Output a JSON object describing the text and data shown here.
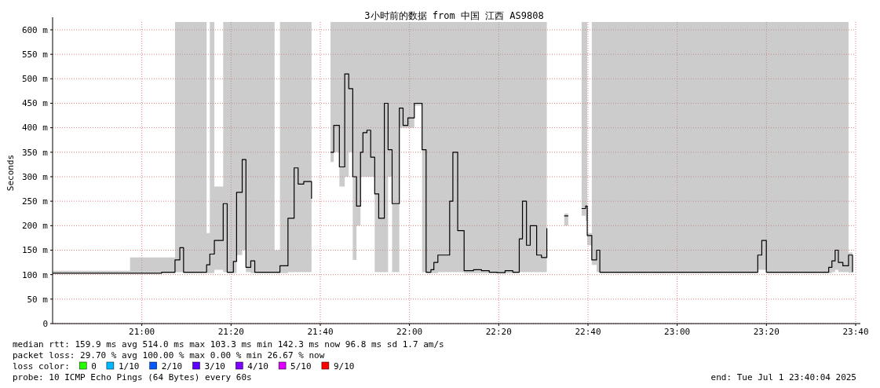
{
  "chart_data": {
    "type": "step",
    "title": "3小时前的数据 from 中国 江西 AS9808",
    "ylabel": "Seconds",
    "xlim": [
      20.6667,
      23.6667
    ],
    "xticks": [
      {
        "value": 21,
        "label": "21:00"
      },
      {
        "value": 21.3333,
        "label": "21:20"
      },
      {
        "value": 21.6667,
        "label": "21:40"
      },
      {
        "value": 22,
        "label": "22:00"
      },
      {
        "value": 22.3333,
        "label": "22:20"
      },
      {
        "value": 22.6667,
        "label": "22:40"
      },
      {
        "value": 23,
        "label": "23:00"
      },
      {
        "value": 23.3333,
        "label": "23:20"
      },
      {
        "value": 23.6667,
        "label": "23:40"
      }
    ],
    "ylim": [
      0,
      616
    ],
    "yticks": [
      0,
      {
        "value": 50,
        "label": "50 m"
      },
      {
        "value": 100,
        "label": "100 m"
      },
      {
        "value": 150,
        "label": "150 m"
      },
      {
        "value": 200,
        "label": "200 m"
      },
      {
        "value": 250,
        "label": "250 m"
      },
      {
        "value": 300,
        "label": "300 m"
      },
      {
        "value": 350,
        "label": "350 m"
      },
      {
        "value": 400,
        "label": "400 m"
      },
      {
        "value": 450,
        "label": "450 m"
      },
      {
        "value": 500,
        "label": "500 m"
      },
      {
        "value": 550,
        "label": "550 m"
      },
      {
        "value": 600,
        "label": "600 m"
      }
    ],
    "grid": true,
    "marker": "none",
    "line_style": "solid",
    "x": [
      20.667,
      20.956,
      21.074,
      21.124,
      21.142,
      21.156,
      21.242,
      21.254,
      21.271,
      21.304,
      21.319,
      21.342,
      21.354,
      21.375,
      21.389,
      21.407,
      21.422,
      21.496,
      21.516,
      21.546,
      21.569,
      21.584,
      21.605,
      21.634,
      21.664,
      21.705,
      21.717,
      21.738,
      21.758,
      21.773,
      21.788,
      21.802,
      21.817,
      21.826,
      21.841,
      21.855,
      21.87,
      21.885,
      21.906,
      21.92,
      21.935,
      21.962,
      21.976,
      21.994,
      22.018,
      22.047,
      22.062,
      22.08,
      22.091,
      22.106,
      22.15,
      22.162,
      22.18,
      22.204,
      22.239,
      22.269,
      22.298,
      22.327,
      22.357,
      22.386,
      22.41,
      22.422,
      22.437,
      22.451,
      22.475,
      22.493,
      22.513,
      22.534,
      22.578,
      22.593,
      22.6,
      22.643,
      22.658,
      22.664,
      22.681,
      22.699,
      22.711,
      23.006,
      23.301,
      23.316,
      23.333,
      23.552,
      23.566,
      23.578,
      23.59,
      23.602,
      23.619,
      23.64,
      23.655
    ],
    "series": [
      {
        "color": "#000000",
        "values": [
          103,
          103,
          105,
          130,
          155,
          105,
          120,
          142,
          170,
          245,
          105,
          127,
          268,
          335,
          115,
          128,
          105,
          105,
          118,
          215,
          318,
          285,
          290,
          255,
          null,
          350,
          405,
          320,
          510,
          480,
          300,
          240,
          350,
          390,
          395,
          340,
          265,
          215,
          450,
          355,
          245,
          440,
          405,
          420,
          450,
          355,
          105,
          110,
          125,
          140,
          250,
          350,
          190,
          108,
          110,
          108,
          105,
          104,
          108,
          105,
          173,
          250,
          160,
          200,
          140,
          135,
          195,
          null,
          220,
          220,
          null,
          235,
          240,
          180,
          130,
          150,
          105,
          105,
          140,
          170,
          105,
          105,
          115,
          128,
          150,
          125,
          118,
          140,
          105
        ],
        "lower": [
          103,
          103,
          103,
          105,
          105,
          103,
          103,
          103,
          110,
          105,
          103,
          103,
          140,
          150,
          105,
          103,
          103,
          103,
          103,
          105,
          105,
          105,
          105,
          250,
          null,
          330,
          350,
          280,
          300,
          350,
          130,
          200,
          300,
          300,
          300,
          300,
          105,
          105,
          105,
          300,
          105,
          400,
          400,
          400,
          445,
          105,
          103,
          103,
          103,
          105,
          105,
          105,
          105,
          103,
          103,
          103,
          103,
          103,
          103,
          103,
          105,
          105,
          105,
          105,
          105,
          105,
          185,
          null,
          200,
          200,
          null,
          220,
          210,
          160,
          120,
          105,
          103,
          103,
          110,
          110,
          103,
          103,
          103,
          105,
          110,
          105,
          105,
          104,
          104
        ],
        "upper": [
          108,
          135,
          135,
          616,
          616,
          616,
          185,
          616,
          280,
          616,
          616,
          616,
          616,
          616,
          616,
          616,
          616,
          150,
          616,
          616,
          616,
          616,
          616,
          616,
          null,
          616,
          616,
          616,
          616,
          616,
          616,
          616,
          616,
          616,
          616,
          616,
          616,
          616,
          616,
          616,
          616,
          616,
          616,
          616,
          616,
          616,
          616,
          616,
          616,
          616,
          616,
          616,
          616,
          616,
          616,
          616,
          616,
          616,
          616,
          616,
          616,
          616,
          616,
          616,
          616,
          616,
          200,
          null,
          225,
          225,
          null,
          616,
          616,
          185,
          616,
          616,
          616,
          616,
          616,
          616,
          616,
          616,
          616,
          616,
          616,
          616,
          616,
          145,
          110
        ]
      }
    ],
    "annotations": [
      "median rtt:  159.9 ms avg  514.0 ms max  103.3 ms min  142.3 ms now  96.8 ms sd  1.7   am/s",
      "packet loss: 29.70 % avg  100.00 % max  0.00 % min  26.67 % now",
      "loss color:",
      "0",
      "1/10",
      "2/10",
      "3/10",
      "4/10",
      "5/10",
      "9/10",
      "probe:       10 ICMP Echo Pings (64 Bytes) every 60s",
      "end: Tue Jul  1 23:40:04 2025"
    ]
  }
}
